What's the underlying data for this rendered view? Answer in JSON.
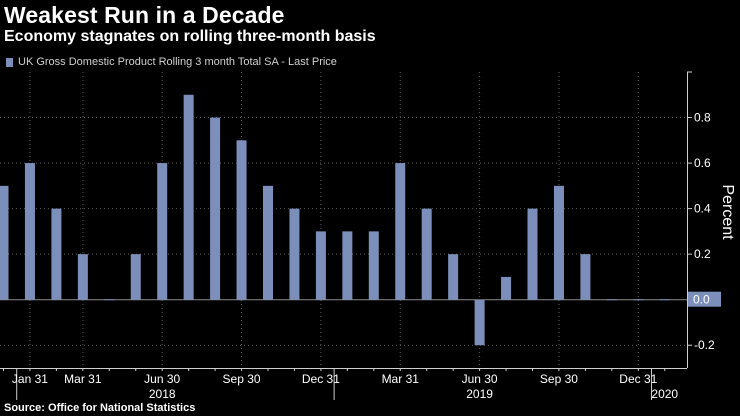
{
  "header": {
    "title": "Weakest Run in a Decade",
    "subtitle": "Economy stagnates on rolling three-month basis"
  },
  "legend": {
    "label": "UK Gross Domestic Product Rolling 3 month Total SA - Last Price"
  },
  "footer": {
    "source": "Source: Office for National Statistics"
  },
  "colors": {
    "bar": "#7b8fba",
    "background": "#000000",
    "grid": "#5a5a5a"
  },
  "chart_data": {
    "type": "bar",
    "title": "Weakest Run in a Decade",
    "subtitle": "Economy stagnates on rolling three-month basis",
    "series": [
      {
        "name": "UK Gross Domestic Product Rolling 3 month Total SA - Last Price",
        "values": [
          0.5,
          0.6,
          0.4,
          0.2,
          0.0,
          0.2,
          0.6,
          0.9,
          0.8,
          0.7,
          0.5,
          0.4,
          0.3,
          0.3,
          0.3,
          0.6,
          0.4,
          0.2,
          -0.2,
          0.1,
          0.4,
          0.5,
          0.2,
          0.0,
          0.0,
          0.0
        ]
      }
    ],
    "x_tick_labels": [
      {
        "index": 1,
        "label": "Jan 31"
      },
      {
        "index": 3,
        "label": "Mar 31"
      },
      {
        "index": 6,
        "label": "Jun 30"
      },
      {
        "index": 9,
        "label": "Sep 30"
      },
      {
        "index": 12,
        "label": "Dec 31"
      },
      {
        "index": 15,
        "label": "Mar 31"
      },
      {
        "index": 18,
        "label": "Jun 30"
      },
      {
        "index": 21,
        "label": "Sep 30"
      },
      {
        "index": 24,
        "label": "Dec 31"
      }
    ],
    "year_labels": [
      {
        "index": 6,
        "label": "2018"
      },
      {
        "index": 18,
        "label": "2019"
      },
      {
        "index": 25,
        "label": "2020"
      }
    ],
    "year_separators": [
      1,
      13,
      25
    ],
    "y_ticks": [
      -0.2,
      0.2,
      0.4,
      0.6,
      0.8
    ],
    "y_tick_labels": [
      "-0.2",
      "0.2",
      "0.4",
      "0.6",
      "0.8"
    ],
    "ylim": [
      -0.3,
      1.0
    ],
    "ylabel": "Percent",
    "xlabel": "",
    "last_value_label": "0.0",
    "grid": true,
    "legend_position": "top-left"
  }
}
